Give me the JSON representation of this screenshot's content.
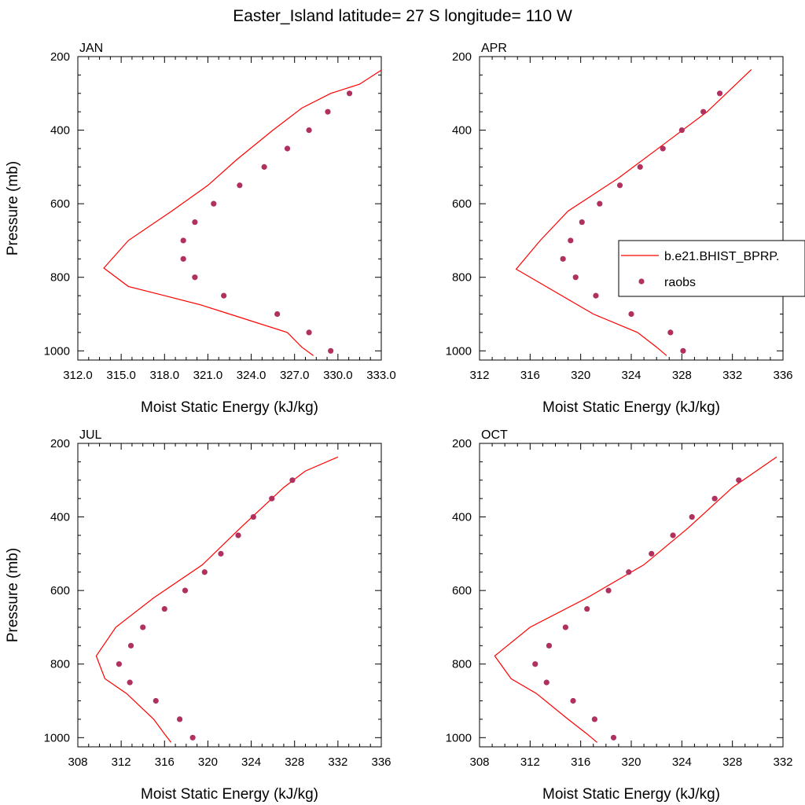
{
  "title": "Easter_Island  latitude= 27 S longitude= 110 W",
  "colors": {
    "model": "#ff0000",
    "obs": "#b03060"
  },
  "legend": {
    "model": "b.e21.BHIST_BPRP.",
    "obs": "raobs"
  },
  "chart_data": [
    {
      "type": "line",
      "title": "JAN",
      "xlabel": "Moist Static Energy (kJ/kg)",
      "ylabel": "Pressure (mb)",
      "xlim": [
        312,
        333
      ],
      "ylim": [
        1025,
        200
      ],
      "xticks": [
        "312.0",
        "315.0",
        "318.0",
        "321.0",
        "324.0",
        "327.0",
        "330.0",
        "333.0"
      ],
      "yticks": [
        "200",
        "400",
        "600",
        "800",
        "1000"
      ],
      "series": [
        {
          "name": "b.e21.BHIST_BPRP.",
          "kind": "line",
          "x": [
            328.3,
            327.5,
            326.5,
            322.5,
            320.5,
            318.0,
            315.5,
            313.8,
            315.5,
            318.5,
            321.0,
            323.0,
            325.5,
            327.5,
            329.5,
            331.5,
            333.0
          ],
          "y": [
            1013,
            990,
            950,
            900,
            875,
            850,
            825,
            775,
            700,
            620,
            550,
            480,
            400,
            340,
            300,
            275,
            237
          ]
        },
        {
          "name": "raobs",
          "kind": "scatter",
          "x": [
            329.5,
            328.0,
            325.8,
            322.1,
            320.1,
            319.3,
            319.3,
            320.1,
            321.4,
            323.2,
            324.9,
            326.5,
            328.0,
            329.3,
            330.8
          ],
          "y": [
            1000,
            950,
            900,
            850,
            800,
            750,
            700,
            650,
            600,
            550,
            500,
            450,
            400,
            350,
            300
          ]
        }
      ]
    },
    {
      "type": "line",
      "title": "APR",
      "xlabel": "Moist Static Energy (kJ/kg)",
      "ylabel": "",
      "xlim": [
        312,
        336
      ],
      "ylim": [
        1025,
        200
      ],
      "xticks": [
        "312",
        "316",
        "320",
        "324",
        "328",
        "332",
        "336"
      ],
      "yticks": [
        "200",
        "400",
        "600",
        "800",
        "1000"
      ],
      "series": [
        {
          "name": "b.e21.BHIST_BPRP.",
          "kind": "line",
          "x": [
            326.8,
            326.0,
            324.5,
            321.0,
            318.0,
            314.9,
            316.8,
            319.0,
            323.0,
            326.5,
            330.0,
            333.5
          ],
          "y": [
            1013,
            990,
            950,
            900,
            840,
            778,
            700,
            620,
            530,
            440,
            350,
            235
          ]
        },
        {
          "name": "raobs",
          "kind": "scatter",
          "x": [
            328.1,
            327.1,
            324.0,
            321.2,
            319.6,
            318.6,
            319.2,
            320.1,
            321.5,
            323.1,
            324.7,
            326.5,
            328.0,
            329.7,
            331.0
          ],
          "y": [
            1000,
            950,
            900,
            850,
            800,
            750,
            700,
            650,
            600,
            550,
            500,
            450,
            400,
            350,
            300
          ]
        }
      ]
    },
    {
      "type": "line",
      "title": "JUL",
      "xlabel": "Moist Static Energy (kJ/kg)",
      "ylabel": "Pressure (mb)",
      "xlim": [
        308,
        336
      ],
      "ylim": [
        1025,
        200
      ],
      "xticks": [
        "308",
        "312",
        "316",
        "320",
        "324",
        "328",
        "332",
        "336"
      ],
      "yticks": [
        "200",
        "400",
        "600",
        "800",
        "1000"
      ],
      "series": [
        {
          "name": "b.e21.BHIST_BPRP.",
          "kind": "line",
          "x": [
            316.6,
            316.0,
            315.0,
            312.5,
            310.5,
            309.7,
            311.5,
            315.0,
            319.5,
            323.0,
            327.0,
            329.0,
            332.0
          ],
          "y": [
            1013,
            990,
            950,
            880,
            840,
            778,
            700,
            620,
            530,
            430,
            320,
            275,
            237
          ]
        },
        {
          "name": "raobs",
          "kind": "scatter",
          "x": [
            318.6,
            317.4,
            315.2,
            312.8,
            311.8,
            312.9,
            314.0,
            316.0,
            317.9,
            319.7,
            321.2,
            322.8,
            324.2,
            325.9,
            327.8
          ],
          "y": [
            1000,
            950,
            900,
            850,
            800,
            750,
            700,
            650,
            600,
            550,
            500,
            450,
            400,
            350,
            300
          ]
        }
      ]
    },
    {
      "type": "line",
      "title": "OCT",
      "xlabel": "Moist Static Energy (kJ/kg)",
      "ylabel": "",
      "xlim": [
        308,
        332
      ],
      "ylim": [
        1025,
        200
      ],
      "xticks": [
        "308",
        "312",
        "316",
        "320",
        "324",
        "328",
        "332"
      ],
      "yticks": [
        "200",
        "400",
        "600",
        "800",
        "1000"
      ],
      "series": [
        {
          "name": "b.e21.BHIST_BPRP.",
          "kind": "line",
          "x": [
            317.3,
            316.5,
            315.0,
            312.5,
            310.5,
            309.2,
            312.0,
            316.5,
            321.0,
            324.5,
            328.0,
            331.5
          ],
          "y": [
            1013,
            990,
            950,
            880,
            840,
            778,
            700,
            620,
            530,
            430,
            320,
            237
          ]
        },
        {
          "name": "raobs",
          "kind": "scatter",
          "x": [
            318.6,
            317.1,
            315.4,
            313.3,
            312.4,
            313.5,
            314.8,
            316.5,
            318.2,
            319.8,
            321.6,
            323.3,
            324.8,
            326.6,
            328.5
          ],
          "y": [
            1000,
            950,
            900,
            850,
            800,
            750,
            700,
            650,
            600,
            550,
            500,
            450,
            400,
            350,
            300
          ]
        }
      ]
    }
  ]
}
